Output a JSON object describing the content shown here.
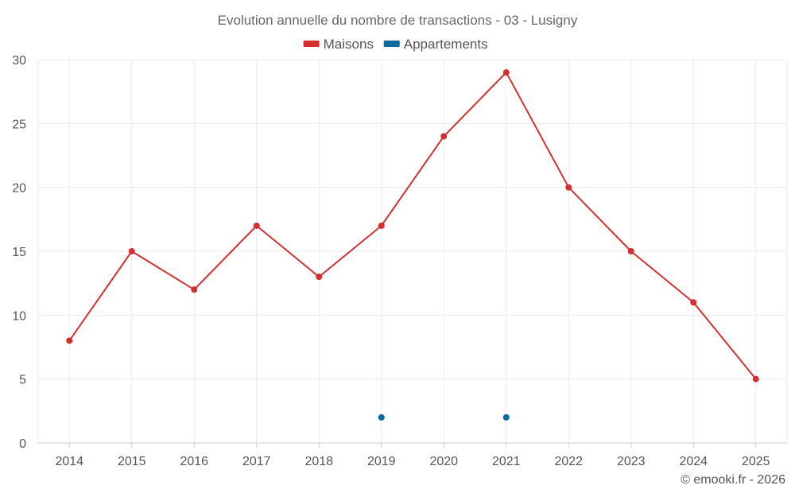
{
  "chart_data": {
    "type": "line",
    "title": "Evolution annuelle du nombre de transactions - 03 - Lusigny",
    "categories": [
      "2014",
      "2015",
      "2016",
      "2017",
      "2018",
      "2019",
      "2020",
      "2021",
      "2022",
      "2023",
      "2024",
      "2025"
    ],
    "series": [
      {
        "name": "Maisons",
        "color": "#d32f2f",
        "values": [
          8,
          15,
          12,
          17,
          13,
          17,
          24,
          29,
          20,
          15,
          11,
          5
        ]
      },
      {
        "name": "Appartements",
        "color": "#0b6aa2",
        "values": [
          null,
          null,
          null,
          null,
          null,
          2,
          null,
          2,
          null,
          null,
          null,
          null
        ]
      }
    ],
    "yticks": [
      0,
      5,
      10,
      15,
      20,
      25,
      30
    ],
    "ylim": [
      0,
      30
    ],
    "xlabel": "",
    "ylabel": "",
    "legend": "top-center",
    "grid": true
  },
  "footer": {
    "copyright": "© emooki.fr - 2026"
  }
}
